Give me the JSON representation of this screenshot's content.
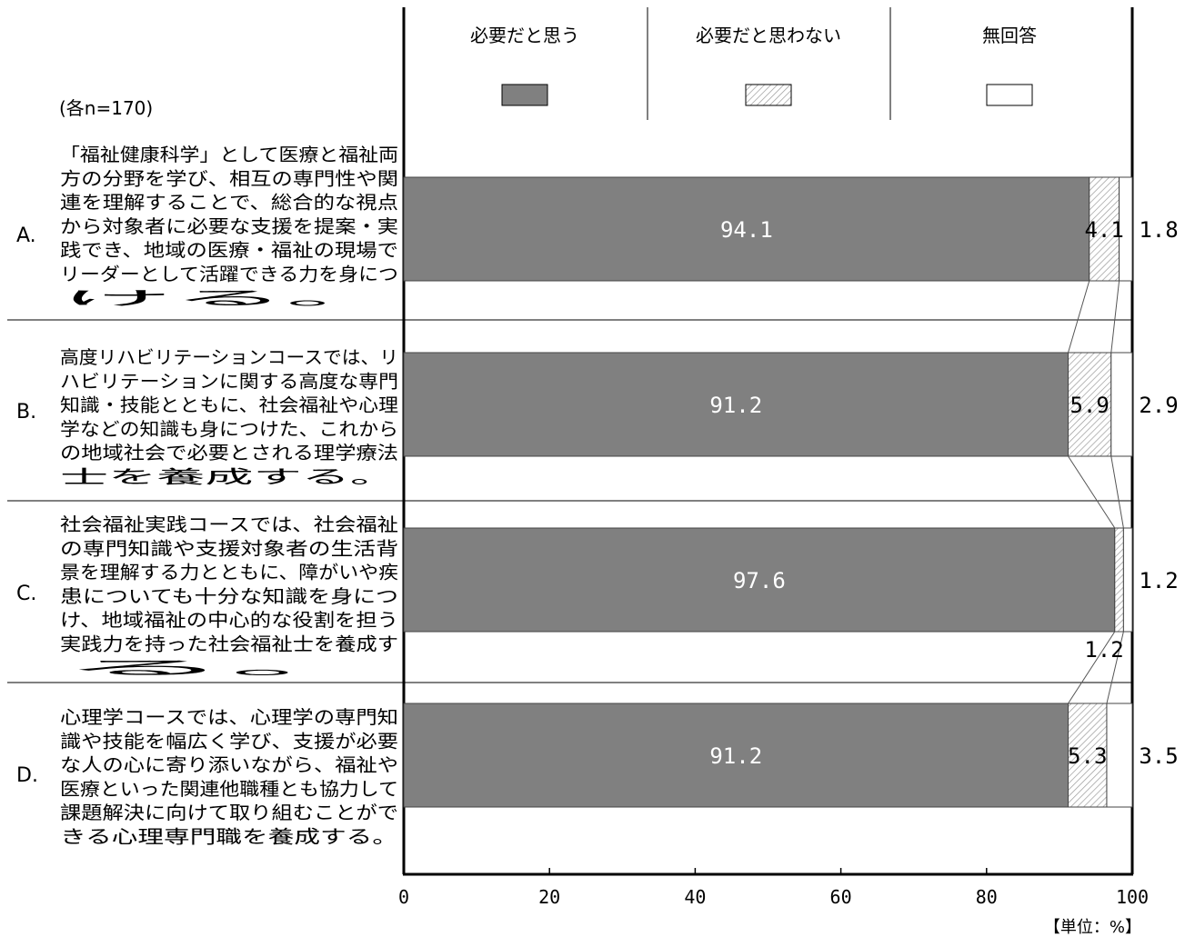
{
  "chart_data": {
    "type": "bar",
    "stacked": true,
    "orientation": "horizontal",
    "sample_note": "(各n=170)",
    "unit_note": "【単位：%】",
    "xlim": [
      0,
      100
    ],
    "x_ticks": [
      "0",
      "20",
      "40",
      "60",
      "80",
      "100"
    ],
    "legend": {
      "placement": "top",
      "items": [
        {
          "name": "必要だと思う",
          "pattern": "solid",
          "color": "#808080"
        },
        {
          "name": "必要だと思わない",
          "pattern": "hatch",
          "color": "#e0e0e0"
        },
        {
          "name": "無回答",
          "pattern": "none",
          "color": "#ffffff"
        }
      ]
    },
    "categories": [
      {
        "letter": "A.",
        "lines": [
          "「福祉健康科学」として医療と福祉両",
          "方の分野を学び、相互の専門性や関",
          "連を理解することで、総合的な視点",
          "から対象者に必要な支援を提案・実",
          "践でき、地域の医療・福祉の現場で",
          "リーダーとして活躍できる力を身につ",
          "ける。"
        ]
      },
      {
        "letter": "B.",
        "lines": [
          "高度リハビリテーションコースでは、リ",
          "ハビリテーションに関する高度な専門",
          "知識・技能とともに、社会福祉や心理",
          "学などの知識も身につけた、これから",
          "の地域社会で必要とされる理学療法",
          "士を養成する。"
        ]
      },
      {
        "letter": "C.",
        "lines": [
          "社会福祉実践コースでは、社会福祉",
          "の専門知識や支援対象者の生活背",
          "景を理解する力とともに、障がいや疾",
          "患についても十分な知識を身につ",
          "け、地域福祉の中心的な役割を担う",
          "実践力を持った社会福祉士を養成す",
          "る。"
        ]
      },
      {
        "letter": "D.",
        "lines": [
          "心理学コースでは、心理学の専門知",
          "識や技能を幅広く学び、支援が必要",
          "な人の心に寄り添いながら、福祉や",
          "医療といった関連他職種とも協力して",
          "課題解決に向けて取り組むことがで",
          "きる心理専門職を養成する。"
        ]
      }
    ],
    "series": [
      {
        "name": "必要だと思う",
        "values": [
          94.1,
          91.2,
          97.6,
          91.2
        ]
      },
      {
        "name": "必要だと思わない",
        "values": [
          4.1,
          5.9,
          1.2,
          5.3
        ]
      },
      {
        "name": "無回答",
        "values": [
          1.8,
          2.9,
          1.2,
          3.5
        ]
      }
    ],
    "data_labels": [
      [
        "94.1",
        "4.1",
        "1.8"
      ],
      [
        "91.2",
        "5.9",
        "2.9"
      ],
      [
        "97.6",
        "1.2",
        "1.2"
      ],
      [
        "91.2",
        "5.3",
        "3.5"
      ]
    ]
  }
}
